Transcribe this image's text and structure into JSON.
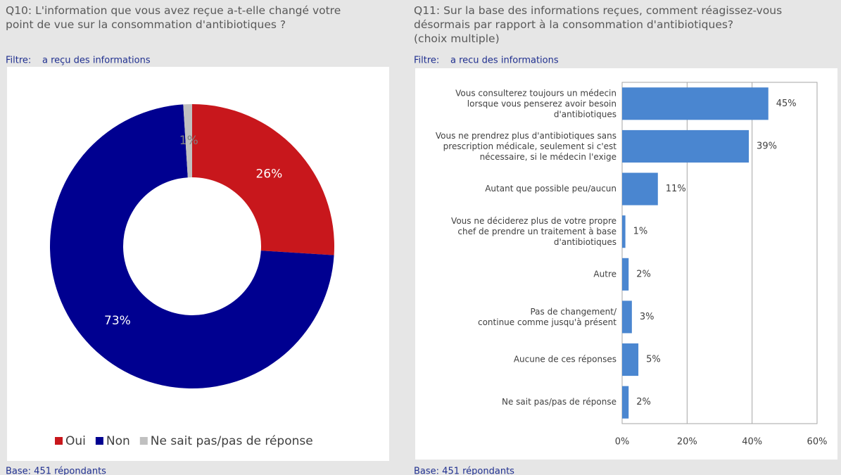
{
  "chart_data": [
    {
      "type": "pie",
      "question": "Q10:  L'information que vous avez reçue a-t-elle changé votre\npoint de vue sur la consommation d'antibiotiques ?",
      "filter_label": "Filtre:",
      "filter": "a reçu des informations",
      "categories": [
        "Oui",
        "Non",
        "Ne sait pas/pas de réponse"
      ],
      "values": [
        26,
        73,
        1
      ],
      "value_labels": [
        "26%",
        "73%",
        "1%"
      ],
      "colors": [
        "#c8171c",
        "#000090",
        "#c0c0c0"
      ],
      "base": "Base: 451 répondants"
    },
    {
      "type": "hbar",
      "question": "Q11:  Sur la base des informations reçues, comment réagissez-vous\ndésormais par rapport à la consommation d'antibiotiques?\n(choix multiple)",
      "filter_label": "Filtre:",
      "filter": "a recu des informations",
      "categories": [
        "Vous consulterez toujours un médecin\nlorsque vous penserez avoir besoin\nd'antibiotiques",
        "Vous ne prendrez plus d'antibiotiques sans\nprescription médicale, seulement si c'est\nnécessaire, si le médecin l'exige",
        "Autant que possible peu/aucun",
        "Vous ne déciderez plus de votre propre\nchef de prendre un traitement à base\nd'antibiotiques",
        "Autre",
        "Pas de changement/\ncontinue comme jusqu'à présent",
        "Aucune de ces réponses",
        "Ne sait pas/pas de réponse"
      ],
      "values": [
        45,
        39,
        11,
        1,
        2,
        3,
        5,
        2
      ],
      "value_labels": [
        "45%",
        "39%",
        "11%",
        "1%",
        "2%",
        "3%",
        "5%",
        "2%"
      ],
      "color": "#4a86d0",
      "xlim": [
        0,
        60
      ],
      "xticks": [
        {
          "value": 0,
          "label": "0%"
        },
        {
          "value": 20,
          "label": "20%"
        },
        {
          "value": 40,
          "label": "40%"
        },
        {
          "value": 60,
          "label": "60%"
        }
      ],
      "grid": true,
      "base": "Base: 451 répondants"
    }
  ]
}
